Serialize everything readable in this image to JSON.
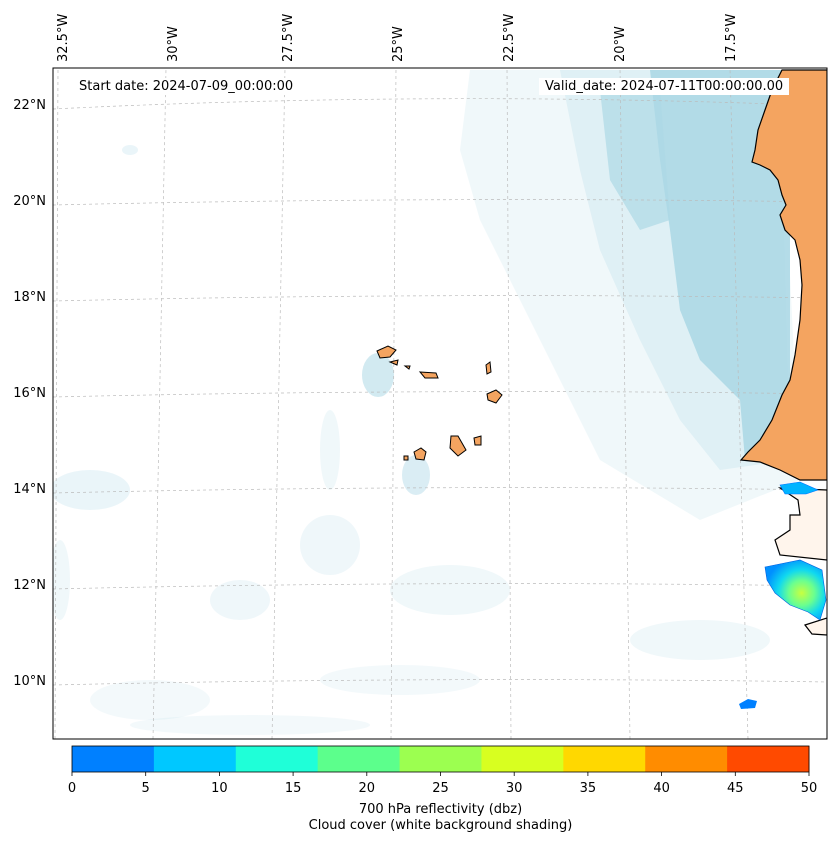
{
  "map": {
    "start_label": "Start date: 2024-07-09_00:00:00",
    "valid_label": "Valid_date: 2024-07-11T00:00:00.00",
    "lon_ticks": [
      "32.5°W",
      "30°W",
      "27.5°W",
      "25°W",
      "22.5°W",
      "20°W",
      "17.5°W"
    ],
    "lat_ticks": [
      "22°N",
      "20°N",
      "18°N",
      "16°N",
      "14°N",
      "12°N",
      "10°N"
    ],
    "colors": {
      "land": "#f4a460",
      "cloud": "#add8e6",
      "coastline": "#000000",
      "gridline": "#bbbbbb"
    }
  },
  "colorbar": {
    "ticks": [
      "0",
      "5",
      "10",
      "15",
      "20",
      "25",
      "30",
      "35",
      "40",
      "45",
      "50"
    ],
    "colors": [
      "#0080ff",
      "#00c8ff",
      "#1fffd8",
      "#5cff8c",
      "#9cff50",
      "#d8ff20",
      "#ffd800",
      "#ff8c00",
      "#ff4a00"
    ],
    "label_line1": "700 hPa reflectivity (dbz)",
    "label_line2": "Cloud cover (white background shading)"
  }
}
